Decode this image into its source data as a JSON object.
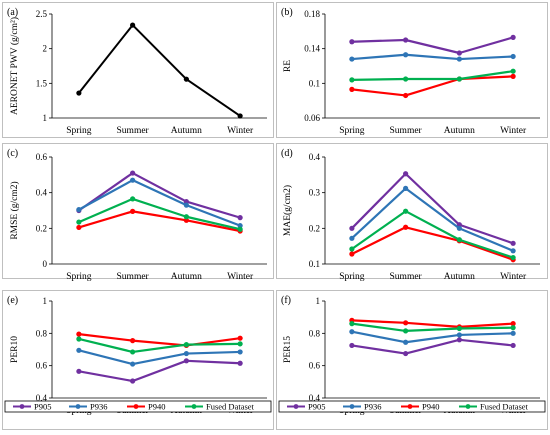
{
  "chart_data": [
    {
      "panel_label": "(a)",
      "type": "line",
      "ylabel": "AERONET PWV (g/cm²)",
      "categories": [
        "Spring",
        "Summer",
        "Autumn",
        "Winter"
      ],
      "yticks": [
        "1",
        "1.5",
        "2",
        "2.5"
      ],
      "ylim": [
        1,
        2.5
      ],
      "series": [
        {
          "color": "#000000",
          "values": [
            1.36,
            2.34,
            1.56,
            1.03
          ]
        }
      ],
      "legend": false
    },
    {
      "panel_label": "(b)",
      "type": "line",
      "ylabel": "RE",
      "categories": [
        "Spring",
        "Summer",
        "Autumn",
        "Winter"
      ],
      "yticks": [
        "0.06",
        "0.1",
        "0.14",
        "0.18"
      ],
      "ylim": [
        0.06,
        0.18
      ],
      "series": [
        {
          "color": "#7030a0",
          "values": [
            0.148,
            0.15,
            0.135,
            0.153
          ]
        },
        {
          "color": "#2e75b6",
          "values": [
            0.128,
            0.133,
            0.128,
            0.131
          ]
        },
        {
          "color": "#ff0000",
          "values": [
            0.093,
            0.086,
            0.105,
            0.108
          ]
        },
        {
          "color": "#00b050",
          "values": [
            0.104,
            0.105,
            0.105,
            0.114
          ]
        }
      ],
      "legend": false
    },
    {
      "panel_label": "(c)",
      "type": "line",
      "ylabel": "RMSE (g/cm2)",
      "categories": [
        "Spring",
        "Summer",
        "Autumn",
        "Winter"
      ],
      "yticks": [
        "0",
        "0.2",
        "0.4",
        "0.6"
      ],
      "ylim": [
        0,
        0.6
      ],
      "series": [
        {
          "color": "#7030a0",
          "values": [
            0.3,
            0.51,
            0.35,
            0.26
          ]
        },
        {
          "color": "#2e75b6",
          "values": [
            0.305,
            0.47,
            0.33,
            0.215
          ]
        },
        {
          "color": "#ff0000",
          "values": [
            0.205,
            0.295,
            0.245,
            0.185
          ]
        },
        {
          "color": "#00b050",
          "values": [
            0.235,
            0.365,
            0.265,
            0.195
          ]
        }
      ],
      "legend": false
    },
    {
      "panel_label": "(d)",
      "type": "line",
      "ylabel": "MAE(g/cm2)",
      "categories": [
        "Spring",
        "Summer",
        "Autumn",
        "Winter"
      ],
      "yticks": [
        "0.1",
        "0.2",
        "0.3",
        "0.4"
      ],
      "ylim": [
        0.1,
        0.4
      ],
      "series": [
        {
          "color": "#7030a0",
          "values": [
            0.2,
            0.353,
            0.21,
            0.158
          ]
        },
        {
          "color": "#2e75b6",
          "values": [
            0.172,
            0.312,
            0.2,
            0.137
          ]
        },
        {
          "color": "#ff0000",
          "values": [
            0.128,
            0.203,
            0.165,
            0.112
          ]
        },
        {
          "color": "#00b050",
          "values": [
            0.142,
            0.248,
            0.168,
            0.118
          ]
        }
      ],
      "legend": false
    },
    {
      "panel_label": "(e)",
      "type": "line",
      "ylabel": "PER10",
      "categories": [
        "Spring",
        "Summer",
        "Autumn",
        "Winter"
      ],
      "yticks": [
        "0.4",
        "0.6",
        "0.8",
        "1"
      ],
      "ylim": [
        0.4,
        1.0
      ],
      "series": [
        {
          "name": "P905",
          "color": "#7030a0",
          "values": [
            0.565,
            0.505,
            0.63,
            0.615
          ]
        },
        {
          "name": "P936",
          "color": "#2e75b6",
          "values": [
            0.695,
            0.61,
            0.675,
            0.685
          ]
        },
        {
          "name": "P940",
          "color": "#ff0000",
          "values": [
            0.795,
            0.755,
            0.725,
            0.77
          ]
        },
        {
          "name": "Fused Dataset",
          "color": "#00b050",
          "values": [
            0.765,
            0.685,
            0.73,
            0.735
          ]
        }
      ],
      "legend": true
    },
    {
      "panel_label": "(f)",
      "type": "line",
      "ylabel": "PER15",
      "categories": [
        "Spring",
        "Summer",
        "Autumn",
        "Winter"
      ],
      "yticks": [
        "0.4",
        "0.6",
        "0.8",
        "1"
      ],
      "ylim": [
        0.4,
        1.0
      ],
      "series": [
        {
          "name": "P905",
          "color": "#7030a0",
          "values": [
            0.725,
            0.675,
            0.76,
            0.725
          ]
        },
        {
          "name": "P936",
          "color": "#2e75b6",
          "values": [
            0.81,
            0.745,
            0.79,
            0.8
          ]
        },
        {
          "name": "P940",
          "color": "#ff0000",
          "values": [
            0.88,
            0.865,
            0.84,
            0.86
          ]
        },
        {
          "name": "Fused Dataset",
          "color": "#00b050",
          "values": [
            0.86,
            0.815,
            0.83,
            0.835
          ]
        }
      ],
      "legend": true
    }
  ]
}
